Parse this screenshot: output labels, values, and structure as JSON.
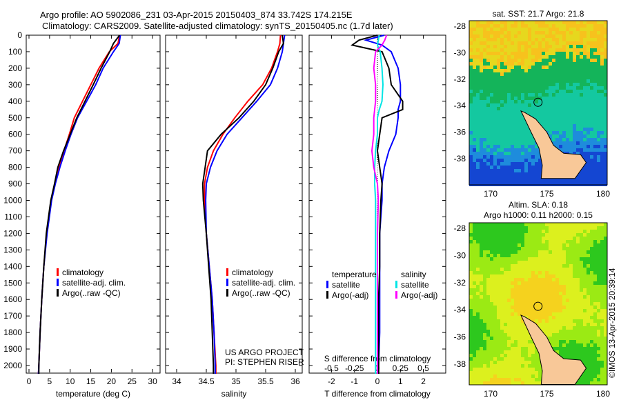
{
  "title_line1": "Argo profile: AO 5902086_231 03-Apr-2015 20150403_874 33.742S 174.215E",
  "title_line2": "Climatology: CARS2009. Satellite-adjusted climatology: synTS_20150405.nc (1.7d later)",
  "colors": {
    "climatology": "#ff0000",
    "satellite": "#0000ff",
    "argo": "#000000",
    "sal_sat": "#00e5e5",
    "sal_argo": "#ff00ff"
  },
  "chart_data": [
    {
      "type": "line",
      "xlabel": "temperature (deg C)",
      "ylabel": "depth",
      "xlim": [
        -1,
        32
      ],
      "ylim": [
        2050,
        0
      ],
      "xticks": [
        "0",
        "5",
        "10",
        "15",
        "20",
        "25",
        "30"
      ],
      "yticks": [
        "0",
        "100",
        "200",
        "300",
        "400",
        "500",
        "600",
        "700",
        "800",
        "900",
        "1000",
        "1100",
        "1200",
        "1300",
        "1400",
        "1500",
        "1600",
        "1700",
        "1800",
        "1900",
        "2000"
      ],
      "legend": [
        "climatology",
        "satellite-adj. clim.",
        "Argo(..raw -QC)"
      ],
      "depth": [
        0,
        50,
        100,
        200,
        300,
        400,
        500,
        600,
        700,
        800,
        900,
        1000,
        1200,
        1400,
        1600,
        1800,
        2000,
        2050
      ],
      "series": [
        {
          "name": "climatology",
          "values": [
            22,
            21.6,
            19.5,
            17,
            15,
            13,
            11,
            9.8,
            8.5,
            7.3,
            6.3,
            5.4,
            4.3,
            3.6,
            3.1,
            2.7,
            2.4,
            2.3
          ]
        },
        {
          "name": "satellite-adj. clim.",
          "values": [
            22.2,
            21.9,
            20.5,
            18,
            16.2,
            14,
            11.8,
            10.2,
            8.8,
            7.5,
            6.4,
            5.5,
            4.4,
            3.6,
            3.1,
            2.7,
            2.4,
            2.3
          ]
        },
        {
          "name": "Argo(..raw -QC)",
          "values": [
            22,
            20.5,
            19.6,
            17.5,
            15.6,
            13.6,
            11.6,
            10,
            8.4,
            7,
            6.2,
            5.3,
            4.2,
            3.6,
            3.1,
            2.7,
            2.4,
            2.4
          ]
        }
      ]
    },
    {
      "type": "line",
      "xlabel": "salinity",
      "xlim": [
        33.82,
        36.05
      ],
      "ylim": [
        2050,
        0
      ],
      "xticks": [
        "34",
        "34.5",
        "35",
        "35.5",
        "36"
      ],
      "legend": [
        "climatology",
        "satellite-adj. clim.",
        "Argo(..raw -QC)"
      ],
      "annotation": [
        "US ARGO PROJECT",
        "PI: STEPHEN RISER"
      ],
      "depth": [
        0,
        50,
        100,
        200,
        300,
        400,
        500,
        600,
        700,
        800,
        900,
        1000,
        1200,
        1400,
        1600,
        1800,
        2000,
        2050
      ],
      "series": [
        {
          "name": "climatology",
          "values": [
            35.75,
            35.74,
            35.7,
            35.6,
            35.45,
            35.2,
            34.98,
            34.78,
            34.62,
            34.52,
            34.47,
            34.47,
            34.5,
            34.55,
            34.6,
            34.63,
            34.66,
            34.66
          ]
        },
        {
          "name": "satellite-adj. clim.",
          "values": [
            35.82,
            35.8,
            35.78,
            35.7,
            35.58,
            35.35,
            35.1,
            34.85,
            34.68,
            34.57,
            34.5,
            34.49,
            34.5,
            34.55,
            34.6,
            34.63,
            34.65,
            34.65
          ]
        },
        {
          "name": "Argo(..raw -QC)",
          "values": [
            35.78,
            35.8,
            35.72,
            35.62,
            35.5,
            35.3,
            35.05,
            34.75,
            34.52,
            34.48,
            34.44,
            34.45,
            34.5,
            34.54,
            34.58,
            34.6,
            34.62,
            34.62
          ]
        }
      ]
    },
    {
      "type": "line",
      "xlabel": "T difference from climatology",
      "x2label": "S difference from climatology",
      "xlim": [
        -3,
        3
      ],
      "x2lim": [
        -0.75,
        0.75
      ],
      "ylim": [
        2050,
        0
      ],
      "xticks": [
        "-2",
        "-1",
        "0",
        "1",
        "2"
      ],
      "x2ticks": [
        "-0.5",
        "-0.25",
        "0",
        "0.25",
        "0.5"
      ],
      "legend_temperature_title": "temperature",
      "legend_salinity_title": "salinity",
      "legend": [
        "satellite",
        "Argo(-adj)",
        "satellite",
        "Argo(-adj)"
      ],
      "depth": [
        0,
        30,
        60,
        100,
        200,
        300,
        400,
        450,
        500,
        600,
        700,
        800,
        900,
        1000,
        1200,
        1400,
        1600,
        1800,
        2000,
        2050
      ],
      "series": [
        {
          "name": "T satellite",
          "values": [
            0.3,
            -0.5,
            0.2,
            0.6,
            0.9,
            1.0,
            1.0,
            0.9,
            0.9,
            0.8,
            0.5,
            0.3,
            0.2,
            0.2,
            0.1,
            0.1,
            0.1,
            0.1,
            0.05,
            0.05
          ]
        },
        {
          "name": "T Argo(-adj)",
          "values": [
            0,
            -0.8,
            -1.1,
            0.2,
            0.5,
            0.6,
            1.1,
            1.1,
            0.2,
            0.1,
            0,
            0.1,
            0.2,
            0.15,
            0.1,
            0.1,
            0.05,
            0.05,
            0.05,
            0.05
          ]
        },
        {
          "name": "S satellite",
          "values": [
            0.02,
            0.01,
            0.0,
            0.03,
            0.05,
            0.06,
            0.05,
            0.02,
            0.0,
            0.0,
            -0.02,
            -0.03,
            -0.03,
            -0.02,
            -0.02,
            -0.02,
            -0.02,
            -0.02,
            -0.02,
            -0.02
          ]
        },
        {
          "name": "S Argo(-adj)",
          "values": [
            0.1,
            0.08,
            0.05,
            -0.02,
            -0.04,
            -0.02,
            -0.02,
            -0.03,
            -0.04,
            -0.04,
            -0.06,
            -0.04,
            0.0,
            0.01,
            0.0,
            0.0,
            0.0,
            0.0,
            0.0,
            0.0
          ]
        }
      ]
    }
  ],
  "map_sst": {
    "title": "sat. SST: 21.7 Argo: 21.8",
    "xticks": [
      "170",
      "175",
      "180"
    ],
    "yticks": [
      "-28",
      "-30",
      "-32",
      "-34",
      "-36",
      "-38"
    ]
  },
  "map_sla": {
    "title1": "Altim. SLA: 0.18",
    "title2": "Argo h1000: 0.11 h2000: 0.15",
    "xticks": [
      "170",
      "175",
      "180"
    ],
    "yticks": [
      "-28",
      "-30",
      "-32",
      "-34",
      "-36",
      "-38"
    ]
  },
  "credit": "©IMOS 13-Apr-2015 20:39:14"
}
